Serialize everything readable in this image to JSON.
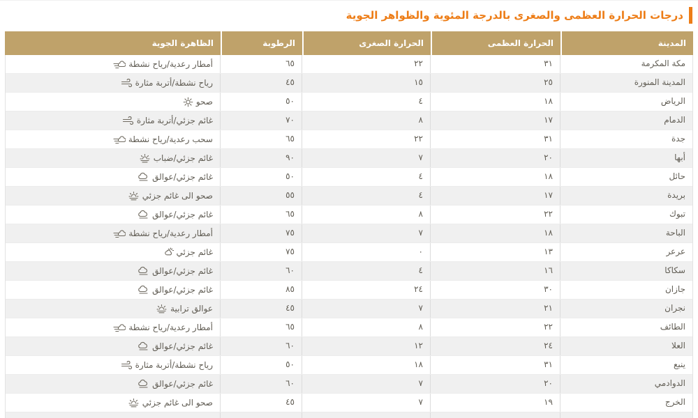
{
  "title": "درجات الحرارة العظمى والصغرى بالدرجة المئوية والظواهر الجوية",
  "colors": {
    "accent_orange": "#ed7d17",
    "header_bg": "#bfa26a",
    "header_text": "#ffffff",
    "row_alt_bg": "#f0f0f0",
    "body_text": "#615d54"
  },
  "table": {
    "columns": [
      {
        "key": "city",
        "label": "المدينة"
      },
      {
        "key": "max",
        "label": "الحرارة العظمى"
      },
      {
        "key": "min",
        "label": "الحرارة الصغرى"
      },
      {
        "key": "humidity",
        "label": "الرطوبة"
      },
      {
        "key": "weather",
        "label": "الظاهرة الجوية"
      }
    ],
    "rows": [
      {
        "city": "مكة المكرمة",
        "max": "٣١",
        "min": "٢٢",
        "humidity": "٦٥",
        "weather": "أمطار رعدية/رياح نشطة",
        "icon": "storm-rain-wind-icon"
      },
      {
        "city": "المدينة المنورة",
        "max": "٢٥",
        "min": "١٥",
        "humidity": "٤٥",
        "weather": "رياح نشطة/أتربة مثارة",
        "icon": "wind-icon"
      },
      {
        "city": "الرياض",
        "max": "١٨",
        "min": "٤",
        "humidity": "٥٠",
        "weather": "صحو",
        "icon": "sun-icon"
      },
      {
        "city": "الدمام",
        "max": "١٧",
        "min": "٨",
        "humidity": "٧٠",
        "weather": "غائم جزئي/أتربة مثارة",
        "icon": "wind-icon"
      },
      {
        "city": "جدة",
        "max": "٣١",
        "min": "٢٢",
        "humidity": "٦٥",
        "weather": "سحب رعدية/رياح نشطة",
        "icon": "storm-rain-wind-icon"
      },
      {
        "city": "أبها",
        "max": "٢٠",
        "min": "٧",
        "humidity": "٩٠",
        "weather": "غائم جزئي/ضباب",
        "icon": "sun-haze-icon"
      },
      {
        "city": "حائل",
        "max": "١٨",
        "min": "٤",
        "humidity": "٥٠",
        "weather": "غائم جزئي/عوالق",
        "icon": "cloud-haze-icon"
      },
      {
        "city": "بريدة",
        "max": "١٧",
        "min": "٤",
        "humidity": "٥٥",
        "weather": "صحو الى غائم جزئي",
        "icon": "sun-haze-icon"
      },
      {
        "city": "تبوك",
        "max": "٢٢",
        "min": "٨",
        "humidity": "٦٥",
        "weather": "غائم جزئي/عوالق",
        "icon": "cloud-haze-icon"
      },
      {
        "city": "الباحة",
        "max": "١٨",
        "min": "٧",
        "humidity": "٧٥",
        "weather": "أمطار رعدية/رياح نشطة",
        "icon": "storm-rain-wind-icon"
      },
      {
        "city": "عرعر",
        "max": "١٣",
        "min": "٠",
        "humidity": "٧٥",
        "weather": "غائم جزئي",
        "icon": "sun-cloud-icon"
      },
      {
        "city": "سكاكا",
        "max": "١٦",
        "min": "٤",
        "humidity": "٦٠",
        "weather": "غائم جزئي/عوالق",
        "icon": "cloud-haze-icon"
      },
      {
        "city": "جازان",
        "max": "٣٠",
        "min": "٢٤",
        "humidity": "٨٥",
        "weather": "غائم جزئي/عوالق",
        "icon": "cloud-haze-icon"
      },
      {
        "city": "نجران",
        "max": "٢١",
        "min": "٧",
        "humidity": "٤٥",
        "weather": "عوالق ترابية",
        "icon": "sun-haze-icon"
      },
      {
        "city": "الطائف",
        "max": "٢٢",
        "min": "٨",
        "humidity": "٦٥",
        "weather": "أمطار رعدية/رياح نشطة",
        "icon": "storm-rain-wind-icon"
      },
      {
        "city": "العلا",
        "max": "٢٤",
        "min": "١٢",
        "humidity": "٦٠",
        "weather": "غائم جزئي/عوالق",
        "icon": "cloud-haze-icon"
      },
      {
        "city": "ينبع",
        "max": "٣١",
        "min": "١٨",
        "humidity": "٥٠",
        "weather": "رياح نشطة/أتربة مثارة",
        "icon": "wind-icon"
      },
      {
        "city": "الدوادمي",
        "max": "٢٠",
        "min": "٧",
        "humidity": "٦٠",
        "weather": "غائم جزئي/عوالق",
        "icon": "cloud-haze-icon"
      },
      {
        "city": "الخرج",
        "max": "١٩",
        "min": "٧",
        "humidity": "٤٥",
        "weather": "صحو الى غائم جزئي",
        "icon": "sun-haze-icon"
      }
    ]
  }
}
